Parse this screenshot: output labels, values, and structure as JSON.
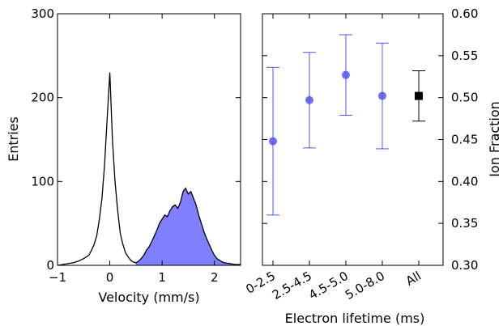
{
  "chart_data": [
    {
      "type": "area",
      "xlabel": "Velocity (mm/s)",
      "ylabel": "Entries",
      "xlim": [
        -1.0,
        2.5
      ],
      "ylim": [
        0,
        300
      ],
      "xticks": [
        -1,
        0,
        1,
        2
      ],
      "xtick_labels": [
        "−1",
        "0",
        "1",
        "2"
      ],
      "yticks": [
        0,
        100,
        200,
        300
      ],
      "ytick_labels": [
        "0",
        "100",
        "200",
        "300"
      ],
      "grid": false,
      "series": [
        {
          "color": "#000000",
          "x": [
            -1.0,
            -0.9,
            -0.8,
            -0.7,
            -0.6,
            -0.5,
            -0.4,
            -0.35,
            -0.3,
            -0.25,
            -0.2,
            -0.15,
            -0.1,
            -0.05,
            0.0,
            0.05,
            0.1,
            0.15,
            0.2,
            0.25,
            0.3,
            0.35,
            0.4,
            0.45,
            0.5,
            0.55,
            0.6,
            0.65,
            0.7,
            0.75,
            0.8,
            0.85,
            0.9,
            0.95,
            1.0,
            1.05,
            1.1,
            1.15,
            1.2,
            1.25,
            1.3,
            1.35,
            1.4,
            1.45,
            1.5,
            1.55,
            1.6,
            1.65,
            1.7,
            1.75,
            1.8,
            1.85,
            1.9,
            1.95,
            2.0,
            2.05,
            2.1,
            2.15,
            2.2,
            2.3,
            2.4,
            2.5
          ],
          "y": [
            0,
            1,
            2,
            3,
            5,
            8,
            12,
            18,
            25,
            35,
            55,
            80,
            120,
            175,
            230,
            150,
            100,
            65,
            38,
            25,
            15,
            10,
            6,
            4,
            3,
            5,
            8,
            12,
            18,
            22,
            28,
            35,
            42,
            50,
            55,
            60,
            58,
            65,
            70,
            72,
            68,
            75,
            88,
            92,
            85,
            88,
            80,
            72,
            60,
            50,
            40,
            32,
            25,
            18,
            12,
            8,
            6,
            4,
            3,
            2,
            1,
            1
          ]
        },
        {
          "color": "#8080ff",
          "fill_from_x": 0.5,
          "x": [
            0.5,
            0.55,
            0.6,
            0.65,
            0.7,
            0.75,
            0.8,
            0.85,
            0.9,
            0.95,
            1.0,
            1.05,
            1.1,
            1.15,
            1.2,
            1.25,
            1.3,
            1.35,
            1.4,
            1.45,
            1.5,
            1.55,
            1.6,
            1.65,
            1.7,
            1.75,
            1.8,
            1.85,
            1.9,
            1.95,
            2.0,
            2.05,
            2.1,
            2.15,
            2.2,
            2.3,
            2.4,
            2.5
          ],
          "y": [
            3,
            5,
            8,
            12,
            18,
            22,
            28,
            35,
            42,
            50,
            55,
            60,
            58,
            65,
            70,
            72,
            68,
            75,
            88,
            92,
            85,
            88,
            80,
            72,
            60,
            50,
            40,
            32,
            25,
            18,
            12,
            8,
            6,
            4,
            3,
            2,
            1,
            1
          ]
        }
      ]
    },
    {
      "type": "scatter",
      "xlabel": "Electron lifetime (ms)",
      "ylabel": "Ion Fraction",
      "categories": [
        "0-2.5",
        "2.5-4.5",
        "4.5-5.0",
        "5.0-8.0",
        "All"
      ],
      "ylim": [
        0.3,
        0.6
      ],
      "yticks": [
        0.3,
        0.35,
        0.4,
        0.45,
        0.5,
        0.55,
        0.6
      ],
      "ytick_labels": [
        "0.30",
        "0.35",
        "0.40",
        "0.45",
        "0.50",
        "0.55",
        "0.60"
      ],
      "yaxis_position": "right",
      "grid": false,
      "points": [
        {
          "category": "0-2.5",
          "value": 0.448,
          "err_low": 0.36,
          "err_high": 0.536,
          "color": "#5555ee",
          "marker": "circle"
        },
        {
          "category": "2.5-4.5",
          "value": 0.497,
          "err_low": 0.44,
          "err_high": 0.554,
          "color": "#5555ee",
          "marker": "circle"
        },
        {
          "category": "4.5-5.0",
          "value": 0.527,
          "err_low": 0.479,
          "err_high": 0.575,
          "color": "#5555ee",
          "marker": "circle"
        },
        {
          "category": "5.0-8.0",
          "value": 0.502,
          "err_low": 0.439,
          "err_high": 0.565,
          "color": "#5555ee",
          "marker": "circle"
        },
        {
          "category": "All",
          "value": 0.502,
          "err_low": 0.472,
          "err_high": 0.532,
          "color": "#000000",
          "marker": "square"
        }
      ]
    }
  ]
}
